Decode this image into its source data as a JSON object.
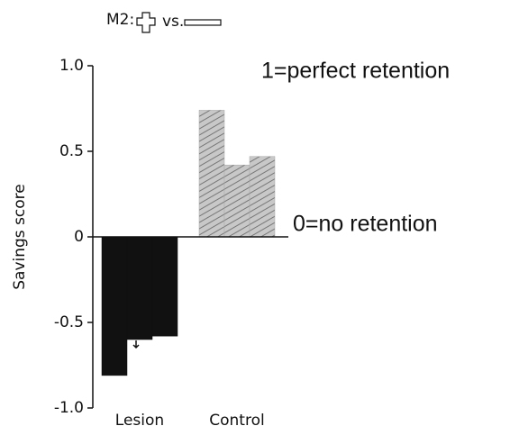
{
  "chart_data": {
    "type": "grouped-bar",
    "title_parts": [
      "M2:",
      "vs."
    ],
    "ylabel": "Savings score",
    "annotations": [
      "1=perfect retention",
      "0=no retention"
    ],
    "categories": [
      "Lesion",
      "Control"
    ],
    "values": [
      [
        -0.81,
        -0.6,
        -0.58
      ],
      [
        0.74,
        0.42,
        0.47
      ]
    ],
    "colors": [
      "#111111",
      "#a8a8a8"
    ],
    "ylim": [
      -1,
      1
    ],
    "yticks": [
      {
        "value": 1,
        "label": "1.0"
      },
      0.5,
      0,
      -0.5,
      {
        "value": -1,
        "label": "-1.0"
      }
    ]
  }
}
